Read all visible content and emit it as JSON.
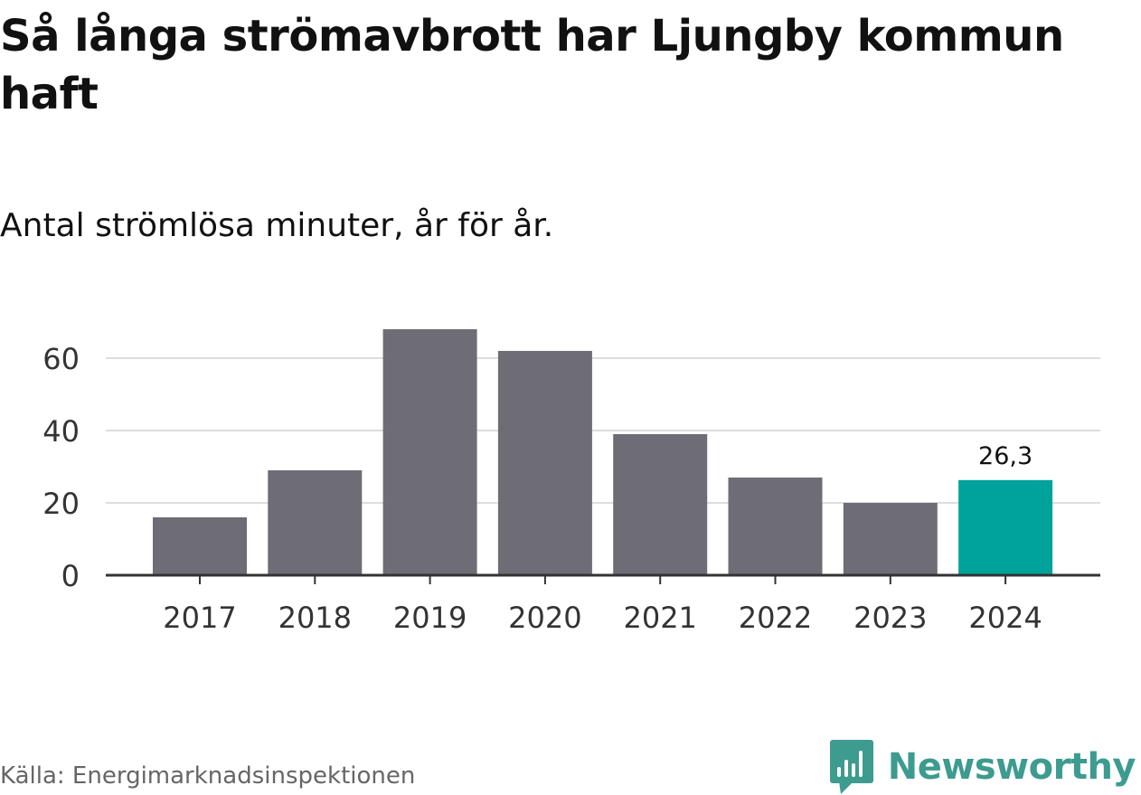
{
  "title": "Så långa strömavbrott har Ljungby kommun haft",
  "subtitle": "Antal strömlösa minuter, år för år.",
  "source": "Källa: Energimarknadsinspektionen",
  "brand": {
    "name": "Newsworthy",
    "icon": "newsworthy-logo-icon",
    "color": "#3d9b8f"
  },
  "colors": {
    "bar": "#6e6d76",
    "highlight": "#00a39b",
    "grid": "#dddddd",
    "axis": "#333333",
    "tick_text": "#333333"
  },
  "chart_data": {
    "type": "bar",
    "title": "Så långa strömavbrott har Ljungby kommun haft",
    "subtitle": "Antal strömlösa minuter, år för år.",
    "xlabel": "",
    "ylabel": "",
    "categories": [
      "2017",
      "2018",
      "2019",
      "2020",
      "2021",
      "2022",
      "2023",
      "2024"
    ],
    "values": [
      16,
      29,
      68,
      62,
      39,
      27,
      20,
      26.3
    ],
    "highlight_index": 7,
    "data_labels": [
      {
        "index": 7,
        "text": "26,3"
      }
    ],
    "ylim": [
      0,
      70
    ],
    "yticks": [
      0,
      20,
      40,
      60
    ],
    "ytick_labels": [
      "0",
      "20",
      "40",
      "60"
    ],
    "grid": true,
    "legend": "none"
  }
}
